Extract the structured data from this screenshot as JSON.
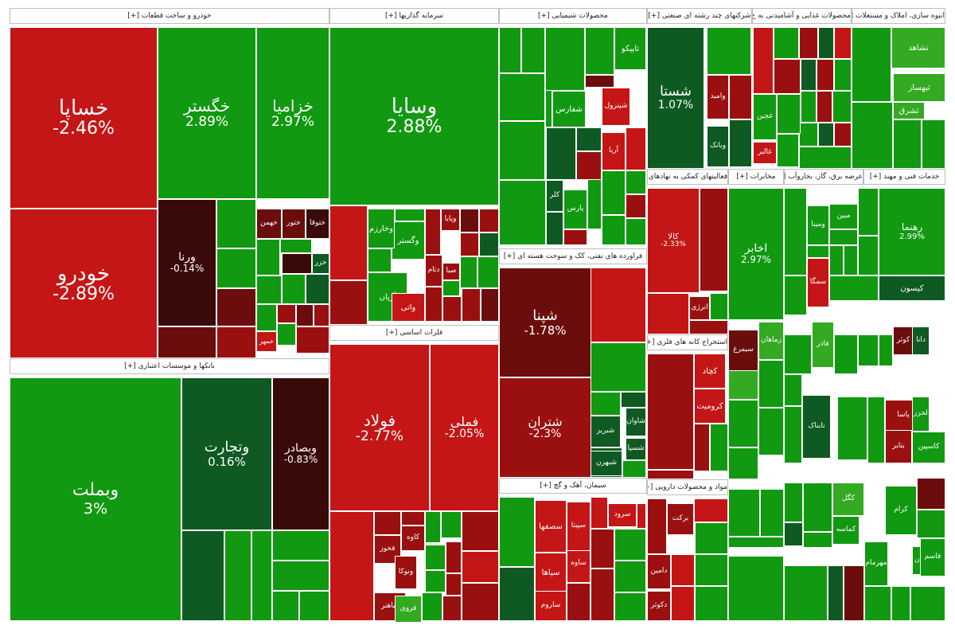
{
  "colors": {
    "g3": "#119911",
    "g2": "#33aa22",
    "g1": "#0e5a22",
    "n": "#3a0a0a",
    "r1": "#6b0d0d",
    "r2": "#9a1010",
    "r3": "#c41616"
  },
  "sectors": [
    {
      "label": "خودرو و ساخت قطعات [+]"
    },
    {
      "label": "سرمایه گذاریها [+]"
    },
    {
      "label": "محصولات شیمیایی [+]"
    },
    {
      "label": "شرکتهای چند رشته ای صنعتی [+]"
    },
    {
      "label": "محصولات غذایی و آشامیدنی به ج [+]"
    },
    {
      "label": "انبوه سازی، املاک و مستغلات [+]"
    },
    {
      "label": "بانکها و موسسات اعتباری [+]"
    },
    {
      "label": "فلزات اساسی [+]"
    },
    {
      "label": "فراورده های نفتی، کک و سوخت هسته ای [+]"
    },
    {
      "label": "سیمان، آهک و گچ [+]"
    },
    {
      "label": "فعالیتهای کمکی به نهادهای [+]"
    },
    {
      "label": "مخابرات [+]"
    },
    {
      "label": "عرضه برق، گاز، بخاروآب [+]"
    },
    {
      "label": "خدمات فنی و مهند [+]"
    },
    {
      "label": "استخراج کانه های فلزی [+]"
    },
    {
      "label": "مواد و محصولات دارویی [+]"
    }
  ],
  "chart_data": {
    "type": "treemap",
    "tiles": [
      {
        "symbol": "خساپا",
        "change": "-2.46%",
        "value": -2.46
      },
      {
        "symbol": "خگستر",
        "change": "2.89%",
        "value": 2.89
      },
      {
        "symbol": "خزامیا",
        "change": "2.97%",
        "value": 2.97
      },
      {
        "symbol": "خودرو",
        "change": "-2.89%",
        "value": -2.89
      },
      {
        "symbol": "ورنا",
        "change": "-0.14%",
        "value": -0.14
      },
      {
        "symbol": "خهمن",
        "change": ""
      },
      {
        "symbol": "ختور",
        "change": ""
      },
      {
        "symbol": "ختوقا",
        "change": ""
      },
      {
        "symbol": "خزر",
        "change": ""
      },
      {
        "symbol": "خمهر",
        "change": ""
      },
      {
        "symbol": "وسایا",
        "change": "2.88%",
        "value": 2.88
      },
      {
        "symbol": "وگستر",
        "change": ""
      },
      {
        "symbol": "وخارزم",
        "change": ""
      },
      {
        "symbol": "آریان",
        "change": ""
      },
      {
        "symbol": "وپایا",
        "change": ""
      },
      {
        "symbol": "دتام",
        "change": ""
      },
      {
        "symbol": "صبا",
        "change": ""
      },
      {
        "symbol": "واتی",
        "change": ""
      },
      {
        "symbol": "تاپیکو",
        "change": ""
      },
      {
        "symbol": "شفارس",
        "change": ""
      },
      {
        "symbol": "شپترول",
        "change": ""
      },
      {
        "symbol": "آریا",
        "change": ""
      },
      {
        "symbol": "کلر",
        "change": ""
      },
      {
        "symbol": "پارس",
        "change": ""
      },
      {
        "symbol": "شستا",
        "change": "1.07%",
        "value": 1.07
      },
      {
        "symbol": "وامید",
        "change": ""
      },
      {
        "symbol": "وبانک",
        "change": ""
      },
      {
        "symbol": "غچین",
        "change": ""
      },
      {
        "symbol": "غالبر",
        "change": ""
      },
      {
        "symbol": "تشاهد",
        "change": ""
      },
      {
        "symbol": "ثبهساز",
        "change": ""
      },
      {
        "symbol": "ثشرق",
        "change": ""
      },
      {
        "symbol": "وبملت",
        "change": "3%",
        "value": 3.0
      },
      {
        "symbol": "وتجارت",
        "change": "0.16%",
        "value": 0.16
      },
      {
        "symbol": "وبصادر",
        "change": "-0.83%",
        "value": -0.83
      },
      {
        "symbol": "فولاد",
        "change": "-2.77%",
        "value": -2.77
      },
      {
        "symbol": "فملی",
        "change": "-2.05%",
        "value": -2.05
      },
      {
        "symbol": "فخوز",
        "change": ""
      },
      {
        "symbol": "کاوه",
        "change": ""
      },
      {
        "symbol": "ونوکا",
        "change": ""
      },
      {
        "symbol": "فباهنر",
        "change": ""
      },
      {
        "symbol": "فروی",
        "change": ""
      },
      {
        "symbol": "شپنا",
        "change": "-1.78%",
        "value": -1.78
      },
      {
        "symbol": "شتران",
        "change": "-2.3%",
        "value": -2.3
      },
      {
        "symbol": "شاوان",
        "change": ""
      },
      {
        "symbol": "شبریز",
        "change": ""
      },
      {
        "symbol": "شسپا",
        "change": ""
      },
      {
        "symbol": "شبهرن",
        "change": ""
      },
      {
        "symbol": "سصفها",
        "change": ""
      },
      {
        "symbol": "سپاها",
        "change": ""
      },
      {
        "symbol": "ساوه",
        "change": ""
      },
      {
        "symbol": "سپیتا",
        "change": ""
      },
      {
        "symbol": "سرود",
        "change": ""
      },
      {
        "symbol": "ساروم",
        "change": ""
      },
      {
        "symbol": "کالا",
        "change": "-2.33%",
        "value": -2.33
      },
      {
        "symbol": "انرژی",
        "change": ""
      },
      {
        "symbol": "اخابر",
        "change": "2.97%",
        "value": 2.97
      },
      {
        "symbol": "ومینا",
        "change": ""
      },
      {
        "symbol": "مبین",
        "change": ""
      },
      {
        "symbol": "رهنما",
        "change": "2.99%",
        "value": 2.99
      },
      {
        "symbol": "کیسون",
        "change": ""
      },
      {
        "symbol": "کچاد",
        "change": ""
      },
      {
        "symbol": "کرومیت",
        "change": ""
      },
      {
        "symbol": "برکت",
        "change": ""
      },
      {
        "symbol": "دامین",
        "change": ""
      },
      {
        "symbol": "دکوثر",
        "change": ""
      },
      {
        "symbol": "سمگا",
        "change": ""
      },
      {
        "symbol": "زماهان",
        "change": ""
      },
      {
        "symbol": "سیمرغ",
        "change": ""
      },
      {
        "symbol": "فاذر",
        "change": ""
      },
      {
        "symbol": "تابناک",
        "change": ""
      },
      {
        "symbol": "کوثر",
        "change": ""
      },
      {
        "symbol": "دانا",
        "change": ""
      },
      {
        "symbol": "پاسا",
        "change": ""
      },
      {
        "symbol": "بتایر",
        "change": ""
      },
      {
        "symbol": "کگل",
        "change": ""
      },
      {
        "symbol": "کرام",
        "change": ""
      },
      {
        "symbol": "کماسه",
        "change": ""
      },
      {
        "symbol": "مهرمام",
        "change": ""
      },
      {
        "symbol": "آوان",
        "change": ""
      },
      {
        "symbol": "قاسم",
        "change": ""
      },
      {
        "symbol": "لخزر",
        "change": ""
      },
      {
        "symbol": "کاسپین",
        "change": ""
      }
    ]
  }
}
